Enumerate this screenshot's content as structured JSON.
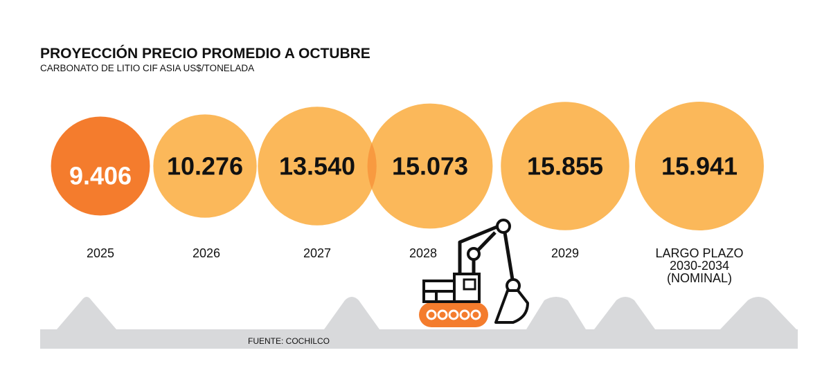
{
  "header": {
    "title": "PROYECCIÓN PRECIO PROMEDIO A OCTUBRE",
    "subtitle": "CARBONATO DE LITIO CIF ASIA US$/TONELADA"
  },
  "footer": {
    "source": "FUENTE: COCHILCO"
  },
  "colors": {
    "highlight": "#f47c2d",
    "bubble": "#fbb85a",
    "overlap": "#f89a40",
    "ground": "#d8d9db",
    "text_dark": "#111111",
    "text_light": "#ffffff"
  },
  "icons": [
    "excavator-icon",
    "mountain-silhouette"
  ],
  "chart_data": {
    "type": "bubble-row",
    "title": "PROYECCIÓN PRECIO PROMEDIO A OCTUBRE",
    "subtitle": "CARBONATO DE LITIO CIF ASIA US$/TONELADA",
    "categories": [
      "2025",
      "2026",
      "2027",
      "2028",
      "2029",
      "LARGO PLAZO 2030-2034 (NOMINAL)"
    ],
    "category_lines": [
      [
        "2025"
      ],
      [
        "2026"
      ],
      [
        "2027"
      ],
      [
        "2028"
      ],
      [
        "2029"
      ],
      [
        "LARGO PLAZO",
        "2030-2034",
        "(NOMINAL)"
      ]
    ],
    "values": [
      9406,
      10276,
      13540,
      15073,
      15855,
      15941
    ],
    "value_labels": [
      "9.406",
      "10.276",
      "13.540",
      "15.073",
      "15.855",
      "15.941"
    ],
    "highlight_index": 0
  }
}
